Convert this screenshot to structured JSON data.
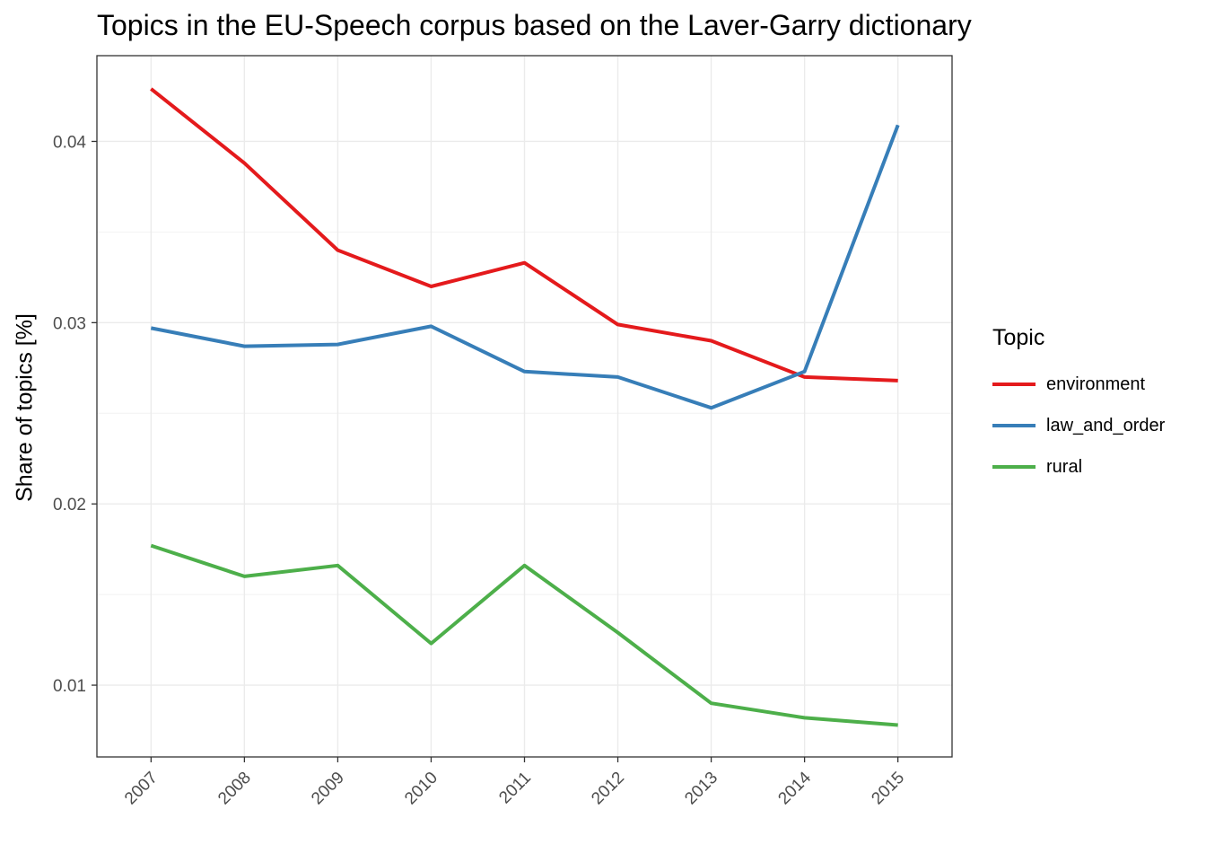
{
  "chart_data": {
    "type": "line",
    "title": "Topics in the EU-Speech corpus based on the Laver-Garry dictionary",
    "xlabel": "",
    "ylabel": "Share of topics [%]",
    "x": [
      2007,
      2008,
      2009,
      2010,
      2011,
      2012,
      2013,
      2014,
      2015
    ],
    "xticks": [
      "2007",
      "2008",
      "2009",
      "2010",
      "2011",
      "2012",
      "2013",
      "2014",
      "2015"
    ],
    "xlim": [
      2006.42,
      2015.58
    ],
    "yticks": [
      0.01,
      0.02,
      0.03,
      0.04
    ],
    "ytick_labels": [
      "0.01",
      "0.02",
      "0.03",
      "0.04"
    ],
    "ylim": [
      0.00604,
      0.04473
    ],
    "grid": true,
    "legend": {
      "title": "Topic",
      "placement": "right"
    },
    "series": [
      {
        "name": "environment",
        "color": "#E41A1C",
        "values": [
          0.0429,
          0.0388,
          0.034,
          0.032,
          0.0333,
          0.0299,
          0.029,
          0.027,
          0.0268
        ]
      },
      {
        "name": "law_and_order",
        "color": "#377EB8",
        "values": [
          0.0297,
          0.0287,
          0.0288,
          0.0298,
          0.0273,
          0.027,
          0.0253,
          0.0273,
          0.0409
        ]
      },
      {
        "name": "rural",
        "color": "#4DAF4A",
        "values": [
          0.0177,
          0.016,
          0.0166,
          0.0123,
          0.0166,
          0.0129,
          0.009,
          0.0082,
          0.0078
        ]
      }
    ]
  }
}
